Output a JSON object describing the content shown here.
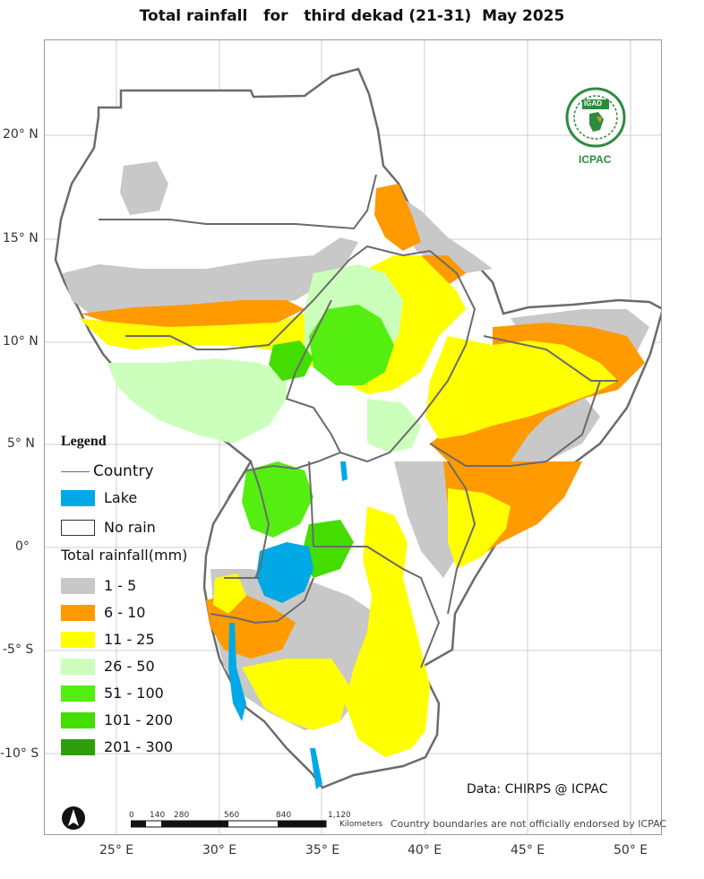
{
  "title": "Total rainfall   for   third dekad (21-31)  May 2025",
  "lat_ticks": [
    "20° N",
    "15° N",
    "10° N",
    "5° N",
    "0°",
    "-5° S",
    "-10° S"
  ],
  "lon_ticks": [
    "25° E",
    "30° E",
    "35° E",
    "40° E",
    "45° E",
    "50° E"
  ],
  "legend": {
    "title": "Legend",
    "country_label": "Country",
    "lake_label": "Lake",
    "norain_label": "No rain",
    "rainfall_title": "Total rainfall(mm)",
    "classes": [
      {
        "label": "1 - 5",
        "color": "#c8c8c8"
      },
      {
        "label": "6 - 10",
        "color": "#ff9a00"
      },
      {
        "label": "11 - 25",
        "color": "#ffff00"
      },
      {
        "label": "26 - 50",
        "color": "#ccffbb"
      },
      {
        "label": "51 - 100",
        "color": "#55ee11"
      },
      {
        "label": "101 - 200",
        "color": "#44dd00"
      },
      {
        "label": "201 - 300",
        "color": "#2f9e0b"
      }
    ],
    "lake_color": "#00a9e6",
    "country_line_color": "#6b6b6b"
  },
  "scale_bar": {
    "labels": [
      "0",
      "140",
      "280",
      "560",
      "840",
      "1,120"
    ],
    "unit": "Kilometers"
  },
  "logo": {
    "top_text": "IGAD",
    "bottom_text": "ICPAC"
  },
  "data_credit": "Data: CHIRPS @ ICPAC",
  "disclaimer": "Country boundaries are not officially endorsed by ICPAC"
}
